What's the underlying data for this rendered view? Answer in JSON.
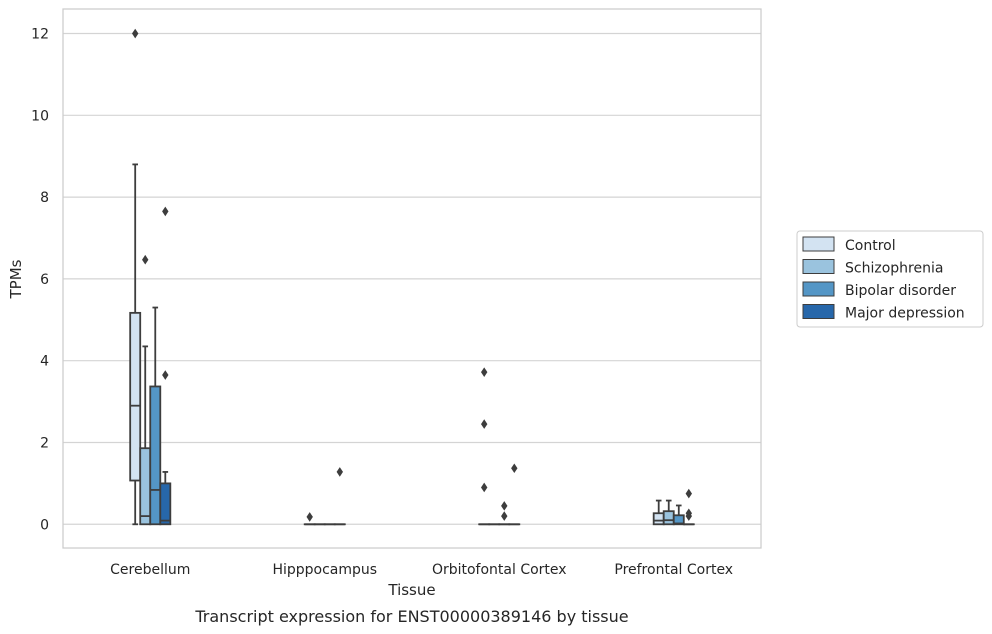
{
  "chart_data": {
    "type": "box",
    "title": "Transcript expression for ENST00000389146 by tissue",
    "xlabel": "Tissue",
    "ylabel": "TPMs",
    "ylim": [
      -0.58,
      12.6
    ],
    "yticks": [
      0,
      2,
      4,
      6,
      8,
      10,
      12
    ],
    "grid": "horizontal",
    "legend_position": "right",
    "categories": [
      "Cerebellum",
      "Hipppocampus",
      "Orbitofontal Cortex",
      "Prefrontal Cortex"
    ],
    "series": [
      {
        "name": "Control",
        "color": "#d3e3f2",
        "boxes": [
          {
            "whisker_low": 0,
            "q1": 1.07,
            "median": 2.9,
            "q3": 5.17,
            "whisker_high": 8.8,
            "outliers": [
              12.0
            ]
          },
          {
            "whisker_low": 0,
            "q1": 0,
            "median": 0,
            "q3": 0,
            "whisker_high": 0,
            "outliers": [
              0.18
            ]
          },
          {
            "whisker_low": 0,
            "q1": 0,
            "median": 0,
            "q3": 0,
            "whisker_high": 0,
            "outliers": [
              3.72,
              2.45,
              0.9
            ]
          },
          {
            "whisker_low": 0,
            "q1": 0,
            "median": 0.09,
            "q3": 0.27,
            "whisker_high": 0.58,
            "outliers": []
          }
        ]
      },
      {
        "name": "Schizophrenia",
        "color": "#9ac3de",
        "boxes": [
          {
            "whisker_low": 0,
            "q1": 0,
            "median": 0.2,
            "q3": 1.86,
            "whisker_high": 4.35,
            "outliers": [
              6.47
            ]
          },
          {
            "whisker_low": 0,
            "q1": 0,
            "median": 0,
            "q3": 0,
            "whisker_high": 0,
            "outliers": []
          },
          {
            "whisker_low": 0,
            "q1": 0,
            "median": 0,
            "q3": 0,
            "whisker_high": 0,
            "outliers": []
          },
          {
            "whisker_low": 0,
            "q1": 0,
            "median": 0.1,
            "q3": 0.32,
            "whisker_high": 0.58,
            "outliers": []
          }
        ]
      },
      {
        "name": "Bipolar disorder",
        "color": "#5496c6",
        "boxes": [
          {
            "whisker_low": 0,
            "q1": 0,
            "median": 0.84,
            "q3": 3.37,
            "whisker_high": 5.3,
            "outliers": []
          },
          {
            "whisker_low": 0,
            "q1": 0,
            "median": 0,
            "q3": 0,
            "whisker_high": 0,
            "outliers": []
          },
          {
            "whisker_low": 0,
            "q1": 0,
            "median": 0,
            "q3": 0,
            "whisker_high": 0,
            "outliers": [
              0.45,
              0.2
            ]
          },
          {
            "whisker_low": 0,
            "q1": 0,
            "median": 0.02,
            "q3": 0.22,
            "whisker_high": 0.46,
            "outliers": []
          }
        ]
      },
      {
        "name": "Major depression",
        "color": "#2767aa",
        "boxes": [
          {
            "whisker_low": 0,
            "q1": 0,
            "median": 0.09,
            "q3": 1.0,
            "whisker_high": 1.28,
            "outliers": [
              7.65,
              3.65
            ]
          },
          {
            "whisker_low": 0,
            "q1": 0,
            "median": 0,
            "q3": 0,
            "whisker_high": 0,
            "outliers": [
              1.28
            ]
          },
          {
            "whisker_low": 0,
            "q1": 0,
            "median": 0,
            "q3": 0,
            "whisker_high": 0,
            "outliers": [
              1.37
            ]
          },
          {
            "whisker_low": 0,
            "q1": 0,
            "median": 0,
            "q3": 0,
            "whisker_high": 0,
            "outliers": [
              0.75,
              0.27,
              0.2
            ]
          }
        ]
      }
    ]
  }
}
